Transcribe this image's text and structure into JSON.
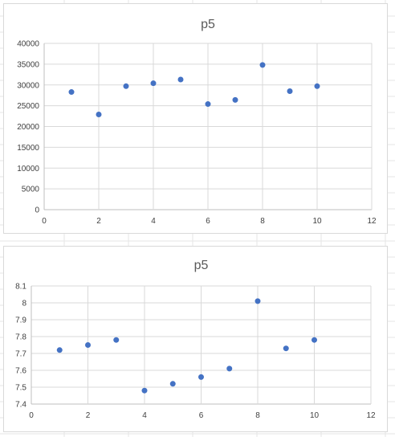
{
  "sheet": {
    "grid_color": "#e6e6e6"
  },
  "chart_data": [
    {
      "type": "scatter",
      "title": "p5",
      "xlabel": "",
      "ylabel": "",
      "xlim": [
        0,
        12
      ],
      "ylim": [
        0,
        40000
      ],
      "x_ticks": [
        0,
        2,
        4,
        6,
        8,
        10,
        12
      ],
      "y_ticks": [
        0,
        5000,
        10000,
        15000,
        20000,
        25000,
        30000,
        35000,
        40000
      ],
      "grid": true,
      "legend": "none",
      "marker_color": "#4472c4",
      "series": [
        {
          "x": [
            1,
            2,
            3,
            4,
            5,
            6,
            7,
            8,
            9,
            10
          ],
          "y": [
            28300,
            22900,
            29700,
            30400,
            31300,
            25400,
            26400,
            34800,
            28500,
            29700
          ]
        }
      ]
    },
    {
      "type": "scatter",
      "title": "p5",
      "xlabel": "",
      "ylabel": "",
      "xlim": [
        0,
        12
      ],
      "ylim": [
        7.4,
        8.1
      ],
      "x_ticks": [
        0,
        2,
        4,
        6,
        8,
        10,
        12
      ],
      "y_ticks": [
        "7.4",
        "7.5",
        "7.6",
        "7.7",
        "7.8",
        "7.9",
        "8",
        "8.1"
      ],
      "grid": true,
      "legend": "none",
      "marker_color": "#4472c4",
      "series": [
        {
          "x": [
            1,
            2,
            3,
            4,
            5,
            6,
            7,
            8,
            9,
            10
          ],
          "y": [
            7.72,
            7.75,
            7.78,
            7.48,
            7.52,
            7.56,
            7.61,
            8.01,
            7.73,
            7.78
          ]
        }
      ]
    }
  ]
}
